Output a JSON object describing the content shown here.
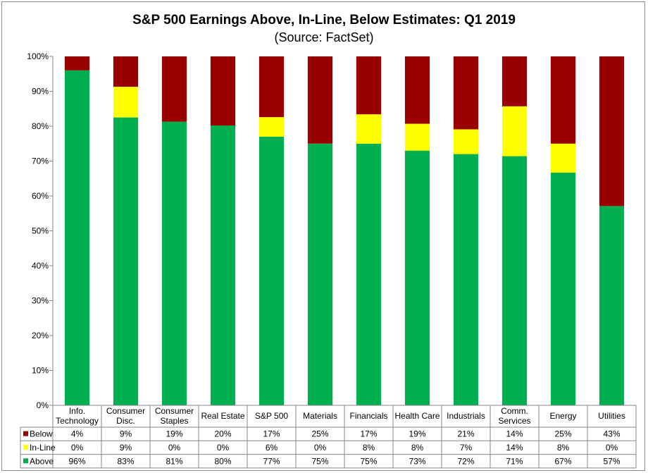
{
  "chart_data": {
    "type": "bar",
    "stacked": true,
    "title": "S&P 500 Earnings Above, In-Line, Below Estimates: Q1 2019",
    "subtitle": "(Source: FactSet)",
    "ylim": [
      0,
      100
    ],
    "yticks": [
      "0%",
      "10%",
      "20%",
      "30%",
      "40%",
      "50%",
      "60%",
      "70%",
      "80%",
      "90%",
      "100%"
    ],
    "grid": false,
    "categories": [
      [
        "Info.",
        "Technology"
      ],
      [
        "Consumer",
        "Disc."
      ],
      [
        "Consumer",
        "Staples"
      ],
      [
        "Real Estate"
      ],
      [
        "S&P 500"
      ],
      [
        "Materials"
      ],
      [
        "Financials"
      ],
      [
        "Health Care"
      ],
      [
        "Industrials"
      ],
      [
        "Comm.",
        "Services"
      ],
      [
        "Energy"
      ],
      [
        "Utilities"
      ]
    ],
    "series": [
      {
        "name": "Above",
        "color": "#00b050",
        "values": [
          96,
          82.5,
          81.3,
          80.2,
          77,
          75,
          75,
          73,
          72,
          71.4,
          66.7,
          57.1
        ],
        "labels": [
          "96%",
          "83%",
          "81%",
          "80%",
          "77%",
          "75%",
          "75%",
          "73%",
          "72%",
          "71%",
          "67%",
          "57%"
        ]
      },
      {
        "name": "In-Line",
        "color": "#ffff00",
        "values": [
          0,
          8.8,
          0,
          0,
          5.6,
          0,
          8.4,
          7.7,
          7.1,
          14.3,
          8.3,
          0
        ],
        "labels": [
          "0%",
          "9%",
          "0%",
          "0%",
          "6%",
          "0%",
          "8%",
          "8%",
          "7%",
          "14%",
          "8%",
          "0%"
        ]
      },
      {
        "name": "Below",
        "color": "#990000",
        "values": [
          4,
          8.7,
          18.7,
          19.8,
          17.4,
          25,
          16.6,
          19.3,
          20.9,
          14.3,
          25,
          42.9
        ],
        "labels": [
          "4%",
          "9%",
          "19%",
          "20%",
          "17%",
          "25%",
          "17%",
          "19%",
          "21%",
          "14%",
          "25%",
          "43%"
        ]
      }
    ],
    "table_row_order": [
      "Below",
      "In-Line",
      "Above"
    ]
  }
}
